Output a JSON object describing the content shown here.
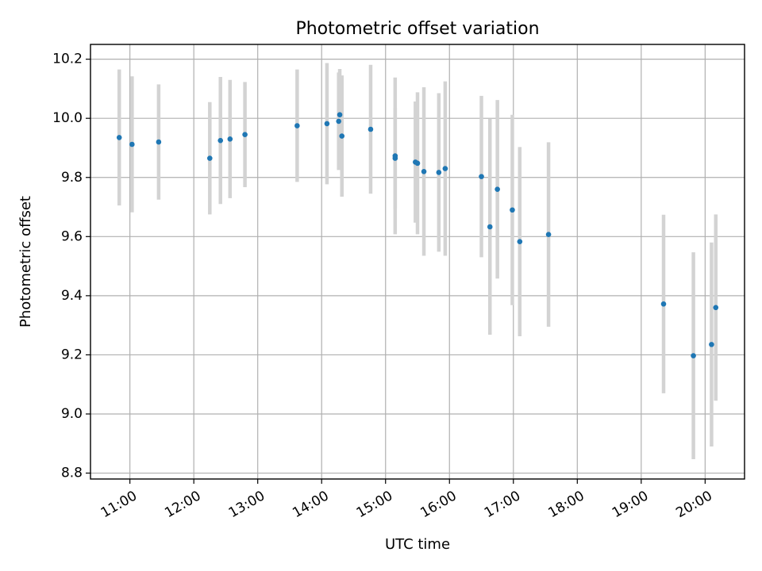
{
  "chart_data": {
    "type": "scatter",
    "title": "Photometric offset variation",
    "xlabel": "UTC time",
    "ylabel": "Photometric offset",
    "xlim": [
      "10:23",
      "20:37"
    ],
    "ylim": [
      8.78,
      10.25
    ],
    "x_ticks": [
      "11:00",
      "12:00",
      "13:00",
      "14:00",
      "15:00",
      "16:00",
      "17:00",
      "18:00",
      "19:00",
      "20:00"
    ],
    "y_ticks": [
      8.8,
      9.0,
      9.2,
      9.4,
      9.6,
      9.8,
      10.0,
      10.2
    ],
    "y_tick_labels": [
      "8.8",
      "9.0",
      "9.2",
      "9.4",
      "9.6",
      "9.8",
      "10.0",
      "10.2"
    ],
    "grid": true,
    "colors": {
      "marker": "#1f77b4",
      "errorbar": "#d3d3d3"
    },
    "points": [
      {
        "t": "10:50",
        "y": 9.935,
        "err": 0.23
      },
      {
        "t": "11:02",
        "y": 9.912,
        "err": 0.23
      },
      {
        "t": "11:27",
        "y": 9.92,
        "err": 0.195
      },
      {
        "t": "12:15",
        "y": 9.865,
        "err": 0.19
      },
      {
        "t": "12:25",
        "y": 9.925,
        "err": 0.215
      },
      {
        "t": "12:34",
        "y": 9.93,
        "err": 0.2
      },
      {
        "t": "12:48",
        "y": 9.945,
        "err": 0.178
      },
      {
        "t": "13:37",
        "y": 9.975,
        "err": 0.19
      },
      {
        "t": "14:05",
        "y": 9.982,
        "err": 0.205
      },
      {
        "t": "14:16",
        "y": 9.99,
        "err": 0.165
      },
      {
        "t": "14:17",
        "y": 10.012,
        "err": 0.155
      },
      {
        "t": "14:19",
        "y": 9.94,
        "err": 0.205
      },
      {
        "t": "14:46",
        "y": 9.963,
        "err": 0.218
      },
      {
        "t": "15:09",
        "y": 9.873,
        "err": 0.265
      },
      {
        "t": "15:09",
        "y": 9.865,
        "err": 0.17
      },
      {
        "t": "15:28",
        "y": 9.852,
        "err": 0.205
      },
      {
        "t": "15:30",
        "y": 9.848,
        "err": 0.24
      },
      {
        "t": "15:36",
        "y": 9.82,
        "err": 0.285
      },
      {
        "t": "15:50",
        "y": 9.817,
        "err": 0.268
      },
      {
        "t": "15:56",
        "y": 9.83,
        "err": 0.295
      },
      {
        "t": "16:30",
        "y": 9.803,
        "err": 0.273
      },
      {
        "t": "16:38",
        "y": 9.633,
        "err": 0.365
      },
      {
        "t": "16:45",
        "y": 9.76,
        "err": 0.302
      },
      {
        "t": "16:59",
        "y": 9.69,
        "err": 0.322
      },
      {
        "t": "17:06",
        "y": 9.583,
        "err": 0.32
      },
      {
        "t": "17:33",
        "y": 9.607,
        "err": 0.312
      },
      {
        "t": "19:21",
        "y": 9.372,
        "err": 0.302
      },
      {
        "t": "19:49",
        "y": 9.197,
        "err": 0.35
      },
      {
        "t": "20:06",
        "y": 9.235,
        "err": 0.345
      },
      {
        "t": "20:10",
        "y": 9.36,
        "err": 0.315
      }
    ]
  }
}
